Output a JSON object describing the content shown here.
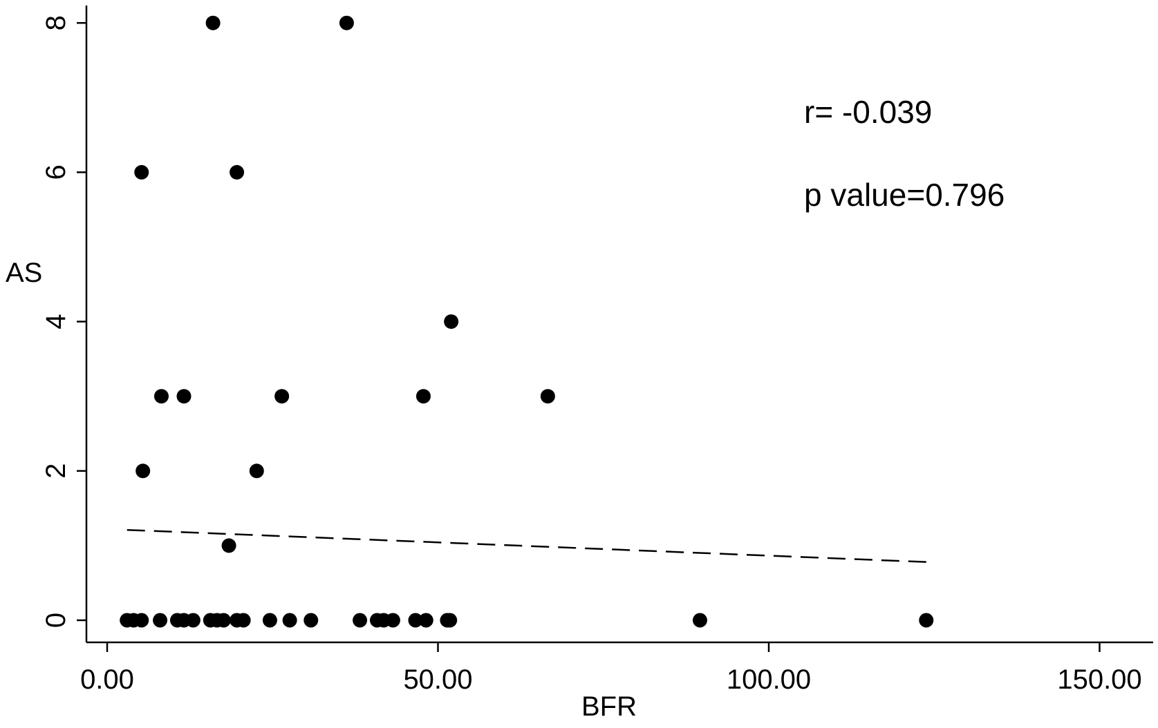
{
  "chart_data": {
    "type": "scatter",
    "xlabel": "BFR",
    "ylabel": "AS",
    "xlim": [
      -1,
      152
    ],
    "ylim": [
      -0.25,
      8.2
    ],
    "x_ticks": [
      0,
      50,
      100,
      150
    ],
    "x_tick_labels": [
      "0.00",
      "50.00",
      "100.00",
      "150.00"
    ],
    "y_ticks": [
      0,
      2,
      4,
      6,
      8
    ],
    "y_tick_labels": [
      "0",
      "2",
      "4",
      "6",
      "8"
    ],
    "grid": false,
    "points": [
      {
        "x": 16.0,
        "y": 8
      },
      {
        "x": 36.2,
        "y": 8
      },
      {
        "x": 5.2,
        "y": 6
      },
      {
        "x": 19.6,
        "y": 6
      },
      {
        "x": 52.0,
        "y": 4
      },
      {
        "x": 8.2,
        "y": 3
      },
      {
        "x": 11.6,
        "y": 3
      },
      {
        "x": 26.4,
        "y": 3
      },
      {
        "x": 47.8,
        "y": 3
      },
      {
        "x": 66.6,
        "y": 3
      },
      {
        "x": 5.4,
        "y": 2
      },
      {
        "x": 22.6,
        "y": 2
      },
      {
        "x": 18.4,
        "y": 1
      },
      {
        "x": 3.0,
        "y": 0
      },
      {
        "x": 4.0,
        "y": 0
      },
      {
        "x": 5.2,
        "y": 0
      },
      {
        "x": 8.0,
        "y": 0
      },
      {
        "x": 10.6,
        "y": 0
      },
      {
        "x": 11.6,
        "y": 0
      },
      {
        "x": 13.0,
        "y": 0
      },
      {
        "x": 15.6,
        "y": 0
      },
      {
        "x": 16.6,
        "y": 0
      },
      {
        "x": 17.6,
        "y": 0
      },
      {
        "x": 19.6,
        "y": 0
      },
      {
        "x": 20.6,
        "y": 0
      },
      {
        "x": 24.6,
        "y": 0
      },
      {
        "x": 27.6,
        "y": 0
      },
      {
        "x": 30.8,
        "y": 0
      },
      {
        "x": 38.2,
        "y": 0
      },
      {
        "x": 40.8,
        "y": 0
      },
      {
        "x": 41.8,
        "y": 0
      },
      {
        "x": 43.2,
        "y": 0
      },
      {
        "x": 46.6,
        "y": 0
      },
      {
        "x": 48.2,
        "y": 0
      },
      {
        "x": 51.4,
        "y": 0
      },
      {
        "x": 51.8,
        "y": 0
      },
      {
        "x": 89.6,
        "y": 0
      },
      {
        "x": 123.8,
        "y": 0
      }
    ],
    "fit_line": {
      "x": [
        3.0,
        123.8
      ],
      "y": [
        1.21,
        0.78
      ],
      "style": "dashed"
    },
    "annotations": [
      "r= -0.039",
      "p value=0.796"
    ]
  }
}
